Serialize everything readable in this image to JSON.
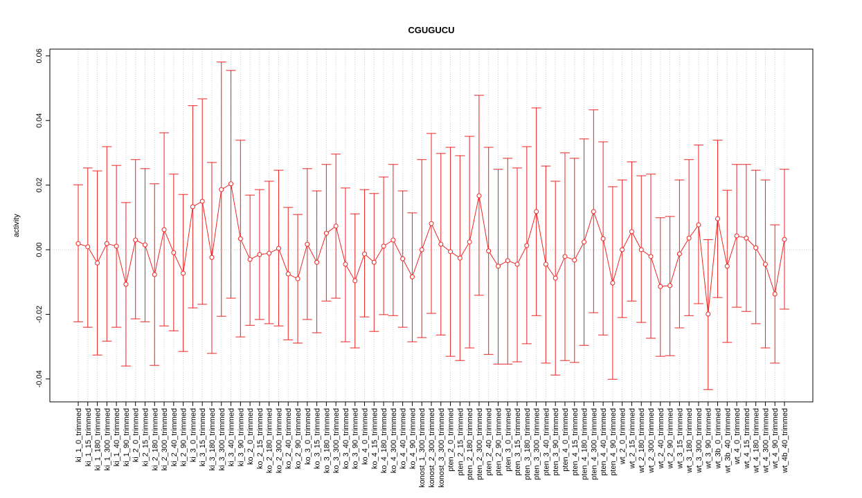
{
  "chart_data": {
    "type": "errorbar_line",
    "title": "CGUGUCU",
    "ylabel": "activity",
    "color": "#ee2222",
    "grid": true,
    "reference_line": 0,
    "categories": [
      "ki_1_0_trimmed",
      "ki_1_15_trimmed",
      "ki_1_180_trimmed",
      "ki_1_300_trimmed",
      "ki_1_40_trimmed",
      "ki_1_90_trimmed",
      "ki_2_0_trimmed",
      "ki_2_15_trimmed",
      "ki_2_180_trimmed",
      "ki_2_300_trimmed",
      "ki_2_40_trimmed",
      "ki_2_90_trimmed",
      "ki_3_0_trimmed",
      "ki_3_15_trimmed",
      "ki_3_180_trimmed",
      "ki_3_300_trimmed",
      "ki_3_40_trimmed",
      "ki_3_90_trimmed",
      "ko_2_0_trimmed",
      "ko_2_15_trimmed",
      "ko_2_180_trimmed",
      "ko_2_300_trimmed",
      "ko_2_40_trimmed",
      "ko_2_90_trimmed",
      "ko_3_0_trimmed",
      "ko_3_15_trimmed",
      "ko_3_180_trimmed",
      "ko_3_300_trimmed",
      "ko_3_40_trimmed",
      "ko_3_90_trimmed",
      "ko_4_0_trimmed",
      "ko_4_15_trimmed",
      "ko_4_180_trimmed",
      "ko_4_300_trimmed",
      "ko_4_40_trimmed",
      "ko_4_90_trimmed",
      "konost_1_300_trimmed",
      "konost_2_300_trimmed",
      "konost_3_300_trimmed",
      "pten_2_0_trimmed",
      "pten_2_15_trimmed",
      "pten_2_180_trimmed",
      "pten_2_300_trimmed",
      "pten_2_40_trimmed",
      "pten_2_90_trimmed",
      "pten_3_0_trimmed",
      "pten_3_15_trimmed",
      "pten_3_180_trimmed",
      "pten_3_300_trimmed",
      "pten_3_40_trimmed",
      "pten_3_90_trimmed",
      "pten_4_0_trimmed",
      "pten_4_15_trimmed",
      "pten_4_180_trimmed",
      "pten_4_300_trimmed",
      "pten_4_40_trimmed",
      "pten_4_90_trimmed",
      "wt_2_0_trimmed",
      "wt_2_15_trimmed",
      "wt_2_180_trimmed",
      "wt_2_300_trimmed",
      "wt_2_40_trimmed",
      "wt_2_90_trimmed",
      "wt_3_15_trimmed",
      "wt_3_180_trimmed",
      "wt_3_300_trimmed",
      "wt_3_90_trimmed",
      "wt_3b_0_trimmed",
      "wt_3b_40_trimmed",
      "wt_4_0_trimmed",
      "wt_4_15_trimmed",
      "wt_4_180_trimmed",
      "wt_4_300_trimmed",
      "wt_4_90_trimmed",
      "wt_4b_40_trimmed"
    ],
    "values": [
      0.0019,
      0.0009,
      -0.0041,
      0.0019,
      0.0011,
      -0.0107,
      0.003,
      0.0015,
      -0.0077,
      0.0062,
      -0.0009,
      -0.0073,
      0.0133,
      0.015,
      -0.0024,
      0.0186,
      0.0204,
      0.0034,
      -0.003,
      -0.0015,
      -0.0011,
      0.0004,
      -0.0075,
      -0.009,
      0.0017,
      -0.0039,
      0.0051,
      0.0073,
      -0.0045,
      -0.0096,
      -0.0013,
      -0.0039,
      0.0011,
      0.003,
      -0.0028,
      -0.0084,
      0,
      0.0081,
      0.0017,
      -0.0006,
      -0.0026,
      0.0024,
      0.0167,
      -0.0004,
      -0.0051,
      -0.0034,
      -0.0045,
      0.0013,
      0.0118,
      -0.0045,
      -0.0088,
      -0.0021,
      -0.0032,
      0.0024,
      0.0118,
      0.0034,
      -0.0103,
      0,
      0.0056,
      0,
      -0.0021,
      -0.0114,
      -0.0111,
      -0.0013,
      0.0036,
      0.0077,
      -0.0199,
      0.0096,
      -0.0051,
      0.0043,
      0.0036,
      0.0006,
      -0.0045,
      -0.0137,
      0.0032
    ],
    "upper": [
      0.0201,
      0.0253,
      0.0244,
      0.0319,
      0.0261,
      0.0146,
      0.0279,
      0.0251,
      0.0204,
      0.0362,
      0.0234,
      0.0171,
      0.0446,
      0.0467,
      0.027,
      0.0581,
      0.0555,
      0.0339,
      0.0169,
      0.0186,
      0.0212,
      0.0246,
      0.0131,
      0.0109,
      0.0251,
      0.0182,
      0.0264,
      0.0296,
      0.0191,
      0.0111,
      0.0186,
      0.0174,
      0.0225,
      0.0264,
      0.0182,
      0.0114,
      0.0279,
      0.036,
      0.0298,
      0.0317,
      0.0291,
      0.0351,
      0.0478,
      0.0317,
      0.0249,
      0.0283,
      0.0253,
      0.0319,
      0.0439,
      0.0259,
      0.0212,
      0.03,
      0.0283,
      0.0343,
      0.0433,
      0.0334,
      0.0195,
      0.0216,
      0.0272,
      0.0229,
      0.0234,
      0.0099,
      0.0103,
      0.0216,
      0.0279,
      0.0324,
      0.0031,
      0.0339,
      0.0184,
      0.0264,
      0.0264,
      0.0246,
      0.0216,
      0.0077,
      0.0249
    ],
    "lower": [
      -0.0223,
      -0.024,
      -0.0326,
      -0.0283,
      -0.024,
      -0.036,
      -0.0214,
      -0.0223,
      -0.0358,
      -0.0236,
      -0.0251,
      -0.0315,
      -0.018,
      -0.0169,
      -0.0321,
      -0.0206,
      -0.015,
      -0.027,
      -0.0234,
      -0.0216,
      -0.0229,
      -0.0236,
      -0.0279,
      -0.0289,
      -0.0216,
      -0.0257,
      -0.0159,
      -0.015,
      -0.0285,
      -0.0304,
      -0.0208,
      -0.0253,
      -0.0201,
      -0.0204,
      -0.024,
      -0.0285,
      -0.0272,
      -0.0197,
      -0.0264,
      -0.033,
      -0.0343,
      -0.0304,
      -0.0141,
      -0.0324,
      -0.0354,
      -0.0354,
      -0.0347,
      -0.0291,
      -0.0204,
      -0.0351,
      -0.0388,
      -0.0343,
      -0.0349,
      -0.0296,
      -0.0195,
      -0.0264,
      -0.0401,
      -0.021,
      -0.0159,
      -0.0225,
      -0.0274,
      -0.033,
      -0.0328,
      -0.0242,
      -0.0204,
      -0.0167,
      -0.0433,
      -0.0148,
      -0.0287,
      -0.0178,
      -0.0191,
      -0.0229,
      -0.0304,
      -0.0351,
      -0.0184
    ],
    "ylim": [
      -0.0471,
      0.0621
    ],
    "yticks": [
      -0.04,
      -0.02,
      {
        "value": 0,
        "label": "0.00"
      },
      0.02,
      0.04,
      0.06
    ]
  }
}
